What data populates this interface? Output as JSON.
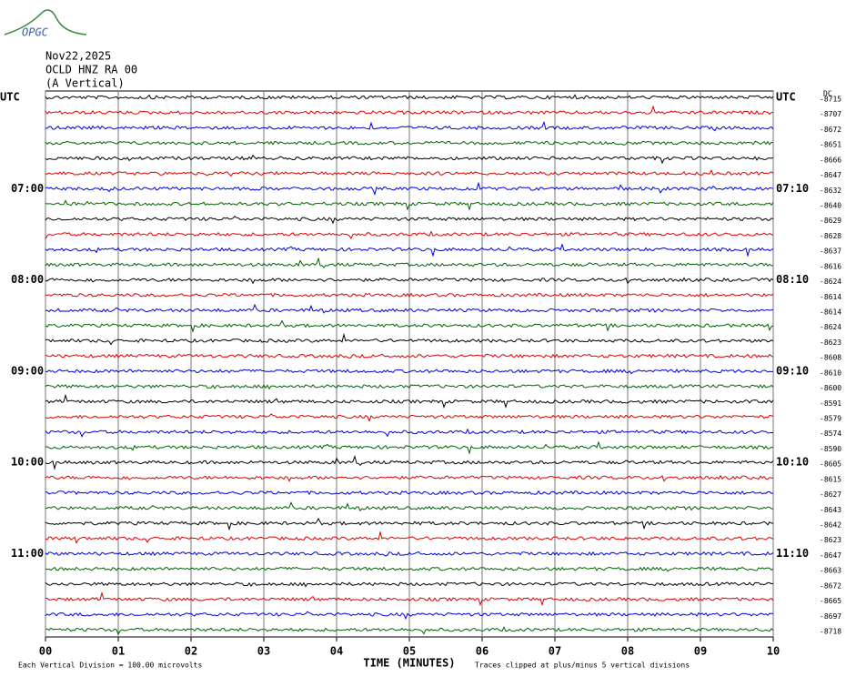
{
  "logo": "OPGC",
  "chart_data": {
    "type": "helicorder",
    "date": "Nov22,2025",
    "station": "OCLD HNZ RA 00",
    "component": "(A Vertical)",
    "corner_label": "DC",
    "xlabel": "TIME (MINUTES)",
    "scale_note": "Each Vertical Division =  100.00 microvolts",
    "clip_note": "Traces clipped at plus/minus 5 vertical divisions",
    "xlim": [
      0,
      10
    ],
    "xticks": [
      {
        "value": 0,
        "label": "00"
      },
      {
        "value": 1,
        "label": "01"
      },
      {
        "value": 2,
        "label": "02"
      },
      {
        "value": 3,
        "label": "03"
      },
      {
        "value": 4,
        "label": "04"
      },
      {
        "value": 5,
        "label": "05"
      },
      {
        "value": 6,
        "label": "06"
      },
      {
        "value": 7,
        "label": "07"
      },
      {
        "value": 8,
        "label": "08"
      },
      {
        "value": 9,
        "label": "09"
      },
      {
        "value": 10,
        "label": "10"
      }
    ],
    "trace_colors": [
      "#000000",
      "#e00000",
      "#0000e0",
      "#006400"
    ],
    "left_labels": [
      "UTC",
      null,
      null,
      null,
      null,
      null,
      "07:00",
      null,
      null,
      null,
      null,
      null,
      "08:00",
      null,
      null,
      null,
      null,
      null,
      "09:00",
      null,
      null,
      null,
      null,
      null,
      "10:00",
      null,
      null,
      null,
      null,
      null,
      "11:00",
      null,
      null,
      null,
      null,
      null
    ],
    "right_labels": [
      "UTC",
      null,
      null,
      null,
      null,
      null,
      "07:10",
      null,
      null,
      null,
      null,
      null,
      "08:10",
      null,
      null,
      null,
      null,
      null,
      "09:10",
      null,
      null,
      null,
      null,
      null,
      "10:10",
      null,
      null,
      null,
      null,
      null,
      "11:10",
      null,
      null,
      null,
      null,
      null
    ],
    "offsets": [
      -8715,
      -8707,
      -8672,
      -8651,
      -8666,
      -8647,
      -8632,
      -8640,
      -8629,
      -8628,
      -8637,
      -8616,
      -8624,
      -8614,
      -8614,
      -8624,
      -8623,
      -8608,
      -8610,
      -8600,
      -8591,
      -8579,
      -8574,
      -8590,
      -8605,
      -8615,
      -8627,
      -8643,
      -8642,
      -8623,
      -8647,
      -8663,
      -8672,
      -8665,
      -8697,
      -8718
    ]
  }
}
